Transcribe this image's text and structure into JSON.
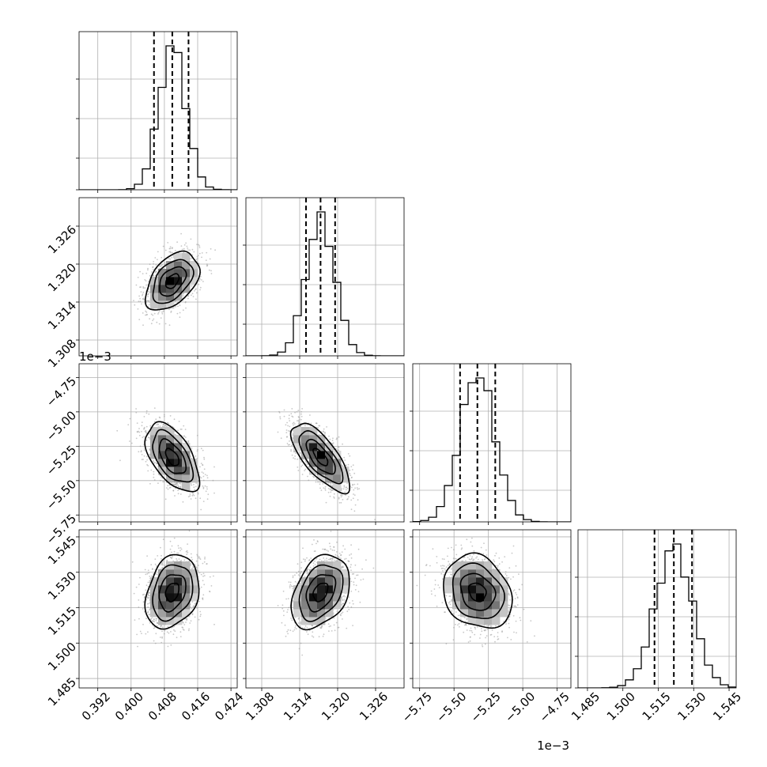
{
  "chart_data": {
    "type": "corner",
    "params": [
      {
        "key": "p0",
        "range": [
          0.3875,
          0.4255
        ],
        "ticks": [
          0.392,
          0.4,
          0.408,
          0.416,
          0.424
        ],
        "tick_labels": [
          "0.392",
          "0.400",
          "0.408",
          "0.416",
          "0.424"
        ],
        "quantiles": [
          0.4055,
          0.4099,
          0.4138
        ],
        "mean": 0.4099,
        "sd": 0.0032,
        "offset_label": ""
      },
      {
        "key": "p1",
        "range": [
          1.3055,
          1.3305
        ],
        "ticks": [
          1.308,
          1.314,
          1.32,
          1.326
        ],
        "tick_labels": [
          "1.308",
          "1.314",
          "1.320",
          "1.326"
        ],
        "quantiles": [
          1.315,
          1.3173,
          1.3196
        ],
        "mean": 1.3173,
        "sd": 0.0023,
        "offset_label": ""
      },
      {
        "key": "p2",
        "range": [
          -5.8,
          -4.65
        ],
        "ticks": [
          -5.75,
          -5.5,
          -5.25,
          -5.0,
          -4.75
        ],
        "tick_labels": [
          "−5.75",
          "−5.50",
          "−5.25",
          "−5.00",
          "−4.75"
        ],
        "quantiles": [
          -5.456,
          -5.33,
          -5.2
        ],
        "mean": -5.33,
        "sd": 0.125,
        "offset_label": "1e−3"
      },
      {
        "key": "p3",
        "range": [
          1.481,
          1.548
        ],
        "ticks": [
          1.485,
          1.5,
          1.515,
          1.53,
          1.545
        ],
        "tick_labels": [
          "1.485",
          "1.500",
          "1.515",
          "1.530",
          "1.545"
        ],
        "quantiles": [
          1.5134,
          1.5216,
          1.5293
        ],
        "mean": 1.5216,
        "sd": 0.0078,
        "offset_label": ""
      }
    ],
    "correlations": [
      {
        "i": 1,
        "j": 0,
        "rho": 0.45
      },
      {
        "i": 2,
        "j": 0,
        "rho": -0.55
      },
      {
        "i": 2,
        "j": 1,
        "rho": -0.72
      },
      {
        "i": 3,
        "j": 0,
        "rho": 0.25
      },
      {
        "i": 3,
        "j": 1,
        "rho": 0.35
      },
      {
        "i": 3,
        "j": 2,
        "rho": -0.2
      }
    ],
    "histogram_bins": 20,
    "contour_levels": [
      0.5,
      1.0,
      1.5,
      2.0
    ],
    "colors": {
      "scatter": "#9a9a9a",
      "line": "#000000",
      "grid": "#b0b0b0"
    },
    "grid": true
  }
}
